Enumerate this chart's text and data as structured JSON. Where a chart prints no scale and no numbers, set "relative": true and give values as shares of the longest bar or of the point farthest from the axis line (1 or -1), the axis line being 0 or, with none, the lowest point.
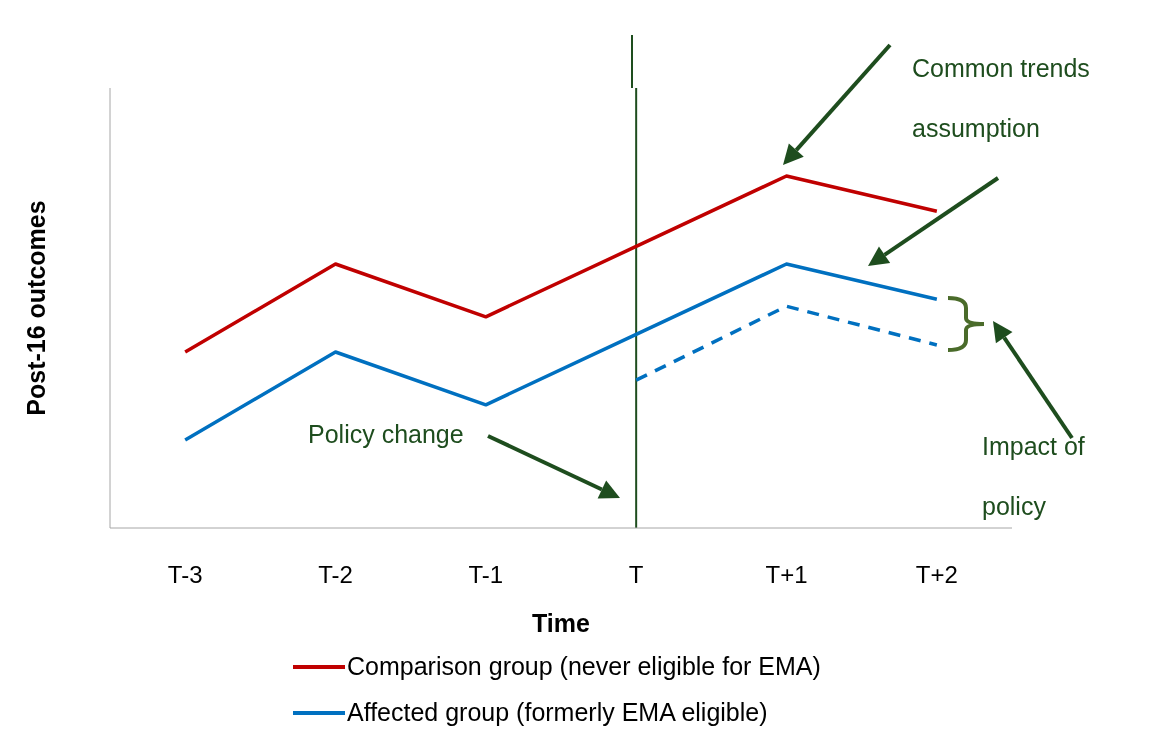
{
  "chart_data": {
    "type": "line",
    "xlabel": "Time",
    "ylabel": "Post-16 outcomes",
    "relative": true,
    "legend": "bottom",
    "categories": [
      "T-3",
      "T-2",
      "T-1",
      "T",
      "T+1",
      "T+2"
    ],
    "series": [
      {
        "name": "Comparison group (never eligible for EMA)",
        "color": "#c00000",
        "values": [
          0.5,
          0.75,
          0.6,
          0.8,
          1,
          0.9
        ]
      },
      {
        "name": "Affected group (formerly EMA eligible)",
        "color": "#0070c0",
        "values": [
          0.25,
          0.5,
          0.35,
          0.55,
          0.75,
          0.65
        ]
      },
      {
        "color": "#0070c0",
        "line_style": "dashed",
        "values": [
          null,
          null,
          null,
          0.42,
          0.63,
          0.52
        ]
      }
    ],
    "ref_lines": [
      {
        "axis": "x",
        "value": "T",
        "label": "Policy change",
        "color": "#1e4d1e"
      }
    ],
    "annotations": [
      "Common trends assumption",
      "Impact of policy"
    ]
  }
}
